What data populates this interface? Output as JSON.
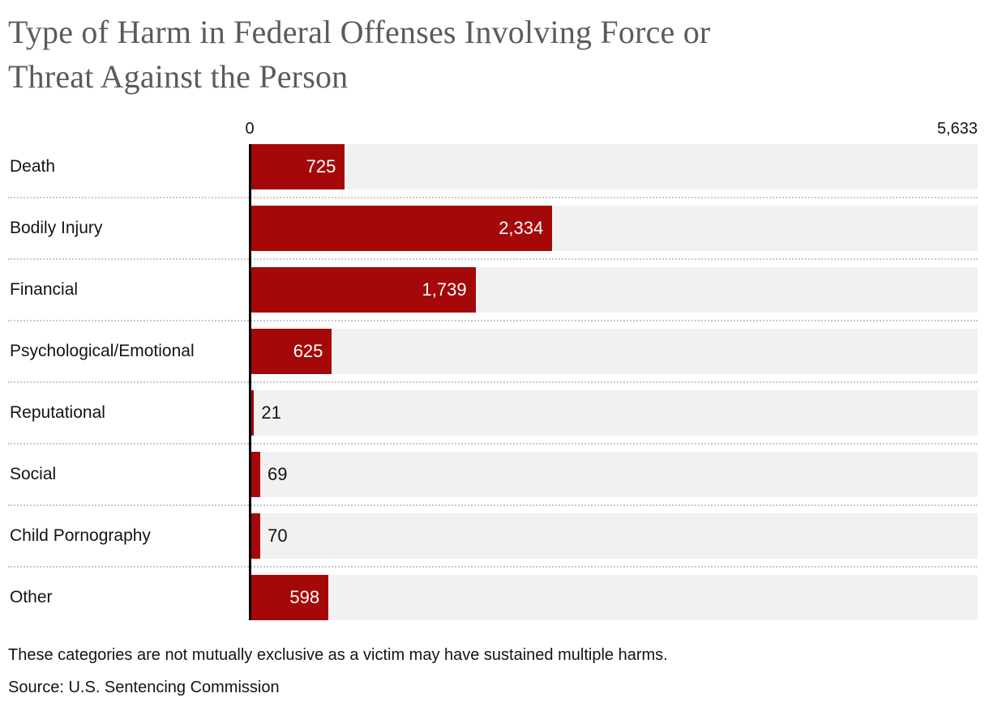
{
  "title": {
    "full": "Type of Harm in Federal Offenses Involving Force or Threat Against the Person",
    "line1": "Type of Harm in Federal Offenses Involving Force or",
    "line2": "Threat Against the Person"
  },
  "axis": {
    "min_label": "0",
    "max_label": "5,633"
  },
  "chart_data": {
    "type": "bar",
    "orientation": "horizontal",
    "title": "Type of Harm in Federal Offenses Involving Force or Threat Against the Person",
    "categories": [
      "Death",
      "Bodily Injury",
      "Financial",
      "Psychological/Emotional",
      "Reputational",
      "Social",
      "Child Pornography",
      "Other"
    ],
    "values": [
      725,
      2334,
      1739,
      625,
      21,
      69,
      70,
      598
    ],
    "value_labels": [
      "725",
      "2,334",
      "1,739",
      "625",
      "21",
      "69",
      "70",
      "598"
    ],
    "xlim": [
      0,
      5633
    ],
    "xlabel": "",
    "ylabel": "",
    "grid": false,
    "legend": false,
    "bar_color": "#a40808",
    "track_color": "#f1f1f1",
    "axis_line_color": "#000000"
  },
  "note": "These categories are not mutually exclusive as a victim may have sustained multiple harms.",
  "source": "Source: U.S. Sentencing Commission"
}
